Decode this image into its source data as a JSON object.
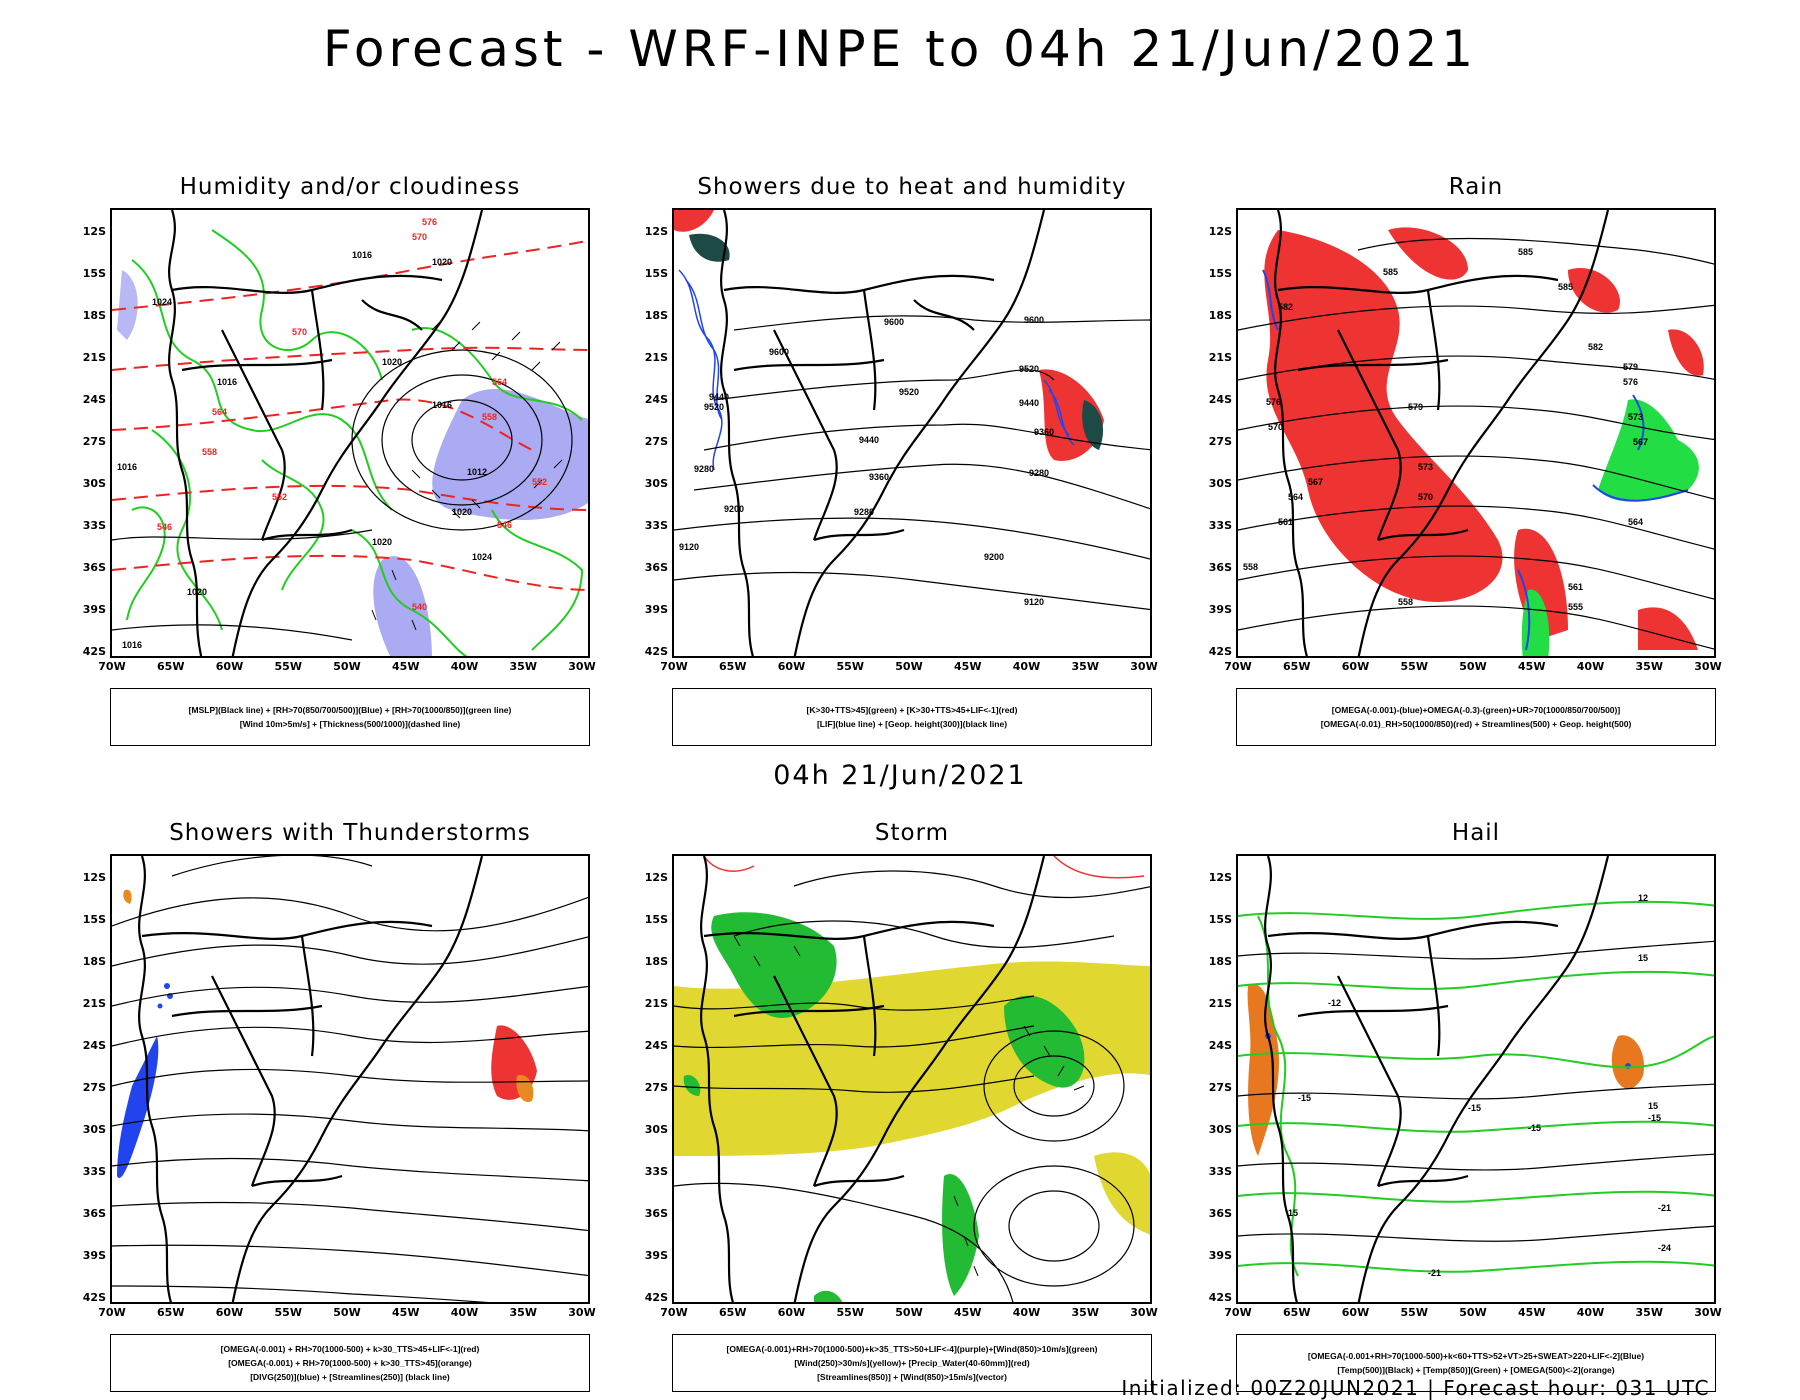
{
  "title": "Forecast - WRF-INPE to 04h 21/Jun/2021",
  "subtitle": "04h 21/Jun/2021",
  "footer": "Initialized: 00Z20JUN2021 | Forecast hour: 031 UTC",
  "lat_labels": [
    "12S",
    "15S",
    "18S",
    "21S",
    "24S",
    "27S",
    "30S",
    "33S",
    "36S",
    "39S",
    "42S"
  ],
  "lon_labels": [
    "70W",
    "65W",
    "60W",
    "55W",
    "50W",
    "45W",
    "40W",
    "35W",
    "30W"
  ],
  "colors": {
    "coast": "#000000",
    "rh_green": "#22cc22",
    "thickness_red": "#ee2222",
    "blue_shade": "#8888ee",
    "storm_yellow": "#e0d830",
    "hail_orange": "#e87820",
    "dark_teal": "#1e4a46"
  },
  "panels": [
    {
      "title": "Humidity and/or cloudiness",
      "legend": [
        "[MSLP](Black line) + [RH>70(850/700/500)](Blue) + [RH>70(1000/850)](green line)",
        "[Wind 10m>5m/s] + [Thickness(500/1000)](dashed line)"
      ],
      "contour_labels": [
        "1016",
        "1020",
        "1024",
        "1016",
        "1020",
        "1012",
        "1016",
        "1016",
        "1020",
        "1024",
        "1020",
        "1020",
        "1016",
        "570",
        "570",
        "564",
        "564",
        "558",
        "558",
        "552",
        "552",
        "546",
        "546",
        "540",
        "576"
      ]
    },
    {
      "title": "Showers due to heat and humidity",
      "legend": [
        "[K>30+TTS>45](green) + [K>30+TTS>45+LIF<-1](red)",
        "[LIF](blue line) + [Geop. height(300)](black line)"
      ],
      "contour_labels": [
        "9600",
        "9600",
        "9600",
        "9520",
        "9520",
        "9440",
        "9440",
        "9360",
        "9360",
        "9280",
        "9280",
        "9200",
        "9200",
        "9120",
        "9120",
        "9520",
        "9440",
        "9280"
      ]
    },
    {
      "title": "Rain",
      "legend": [
        "[OMEGA(-0.001)-(blue)+OMEGA(-0.3)-(green)+UR>70(1000/850/700/500)]",
        "[OMEGA(-0.01)_RH>50(1000/850)(red) + Streamlines(500) + Geop. height(500)"
      ],
      "contour_labels": [
        "585",
        "585",
        "585",
        "582",
        "582",
        "579",
        "579",
        "576",
        "576",
        "573",
        "573",
        "570",
        "570",
        "567",
        "567",
        "564",
        "564",
        "561",
        "561",
        "558",
        "558",
        "555"
      ]
    },
    {
      "title": "Showers with Thunderstorms",
      "legend": [
        "[OMEGA(-0.001) + RH>70(1000-500) + k>30_TTS>45+LIF<-1](red)",
        "[OMEGA(-0.001) + RH>70(1000-500) + k>30_TTS>45](orange)",
        "[DIVG(250)](blue) + [Streamlines(250)] (black line)"
      ],
      "contour_labels": []
    },
    {
      "title": "Storm",
      "legend": [
        "[OMEGA(-0.001)+RH>70(1000-500)+k>35_TTS>50+LIF<-4](purple)+[Wind(850)>10m/s](green)",
        "[Wind(250)>30m/s](yellow)+ [Precip_Water(40-60mm)](red)",
        "[Streamlines(850)] + [Wind(850)>15m/s](vector)"
      ],
      "contour_labels": []
    },
    {
      "title": "Hail",
      "legend": [
        "[OMEGA(-0.001+RH>70(1000-500)+k<60+TTS>52+VT>25+SWEAT>220+LIF<-2](Blue)",
        "[Temp(500)](Black) + [Temp(850)](Green) + [OMEGA(500)<-2](orange)"
      ],
      "contour_labels": [
        "-15",
        "-15",
        "-15",
        "-15",
        "-21",
        "-21",
        "-24",
        "-12",
        "12",
        "15",
        "15",
        "15"
      ]
    }
  ]
}
